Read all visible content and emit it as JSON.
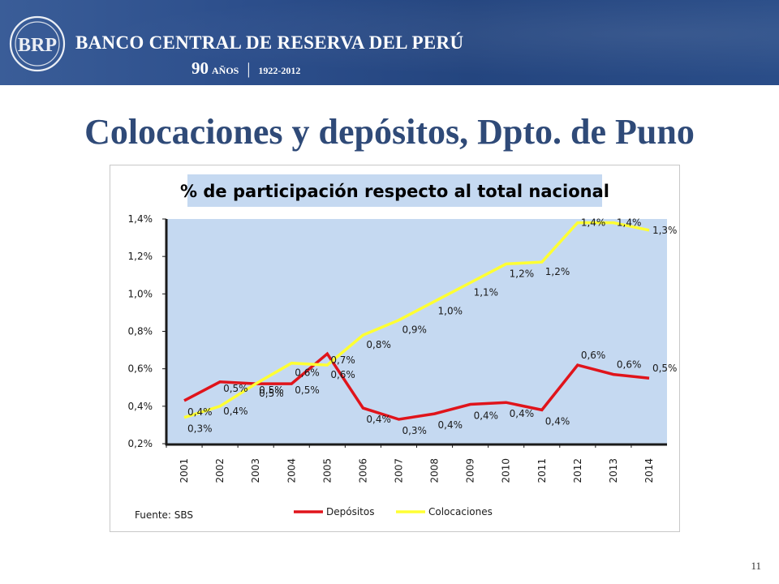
{
  "header": {
    "bank_name": "BANCO CENTRAL DE RESERVA DEL PERÚ",
    "anniversary_number": "90",
    "anniversary_word": "AÑOS",
    "separator": "|",
    "years": "1922-2012",
    "logo_text": "BRP"
  },
  "slide": {
    "title": "Colocaciones y depósitos, Dpto. de Puno",
    "page_number": "11"
  },
  "colors": {
    "banner": "#2d4f8c",
    "title": "#2f4a78",
    "plot_background": "#c5d9f1",
    "depositos": "#e0141b",
    "colocaciones": "#ffff33"
  },
  "chart_data": {
    "type": "line",
    "title": "% de participación  respecto al total nacional",
    "source": "Fuente: SBS",
    "categories": [
      "2001",
      "2002",
      "2003",
      "2004",
      "2005",
      "2006",
      "2007",
      "2008",
      "2009",
      "2010",
      "2011",
      "2012",
      "2013",
      "2014"
    ],
    "ylim": [
      0.2,
      1.4
    ],
    "yticks": [
      "1,4%",
      "1,2%",
      "1,0%",
      "0,8%",
      "0,6%",
      "0,4%",
      "0,2%"
    ],
    "ytick_values": [
      1.4,
      1.2,
      1.0,
      0.8,
      0.6,
      0.4,
      0.2
    ],
    "grid": false,
    "legend_position": "bottom",
    "series": [
      {
        "name": "Depósitos",
        "color": "#e0141b",
        "values": [
          0.43,
          0.53,
          0.52,
          0.52,
          0.68,
          0.39,
          0.33,
          0.36,
          0.41,
          0.42,
          0.38,
          0.62,
          0.57,
          0.55
        ],
        "labels": [
          "0,4%",
          "0,5%",
          "0,5%",
          "0,5%",
          "0,7%",
          "0,4%",
          "0,3%",
          "0,4%",
          "0,4%",
          "0,4%",
          "0,4%",
          "0,6%",
          "0,6%",
          "0,5%"
        ]
      },
      {
        "name": "Colocaciones",
        "color": "#ffff33",
        "values": [
          0.34,
          0.4,
          0.52,
          0.63,
          0.62,
          0.78,
          0.86,
          0.96,
          1.06,
          1.16,
          1.17,
          1.38,
          1.38,
          1.34
        ],
        "labels": [
          "0,3%",
          "0,4%",
          "0,5%",
          "0,6%",
          "0,6%",
          "0,8%",
          "0,9%",
          "1,0%",
          "1,1%",
          "1,2%",
          "1,2%",
          "1,4%",
          "1,4%",
          "1,3%"
        ]
      }
    ]
  }
}
